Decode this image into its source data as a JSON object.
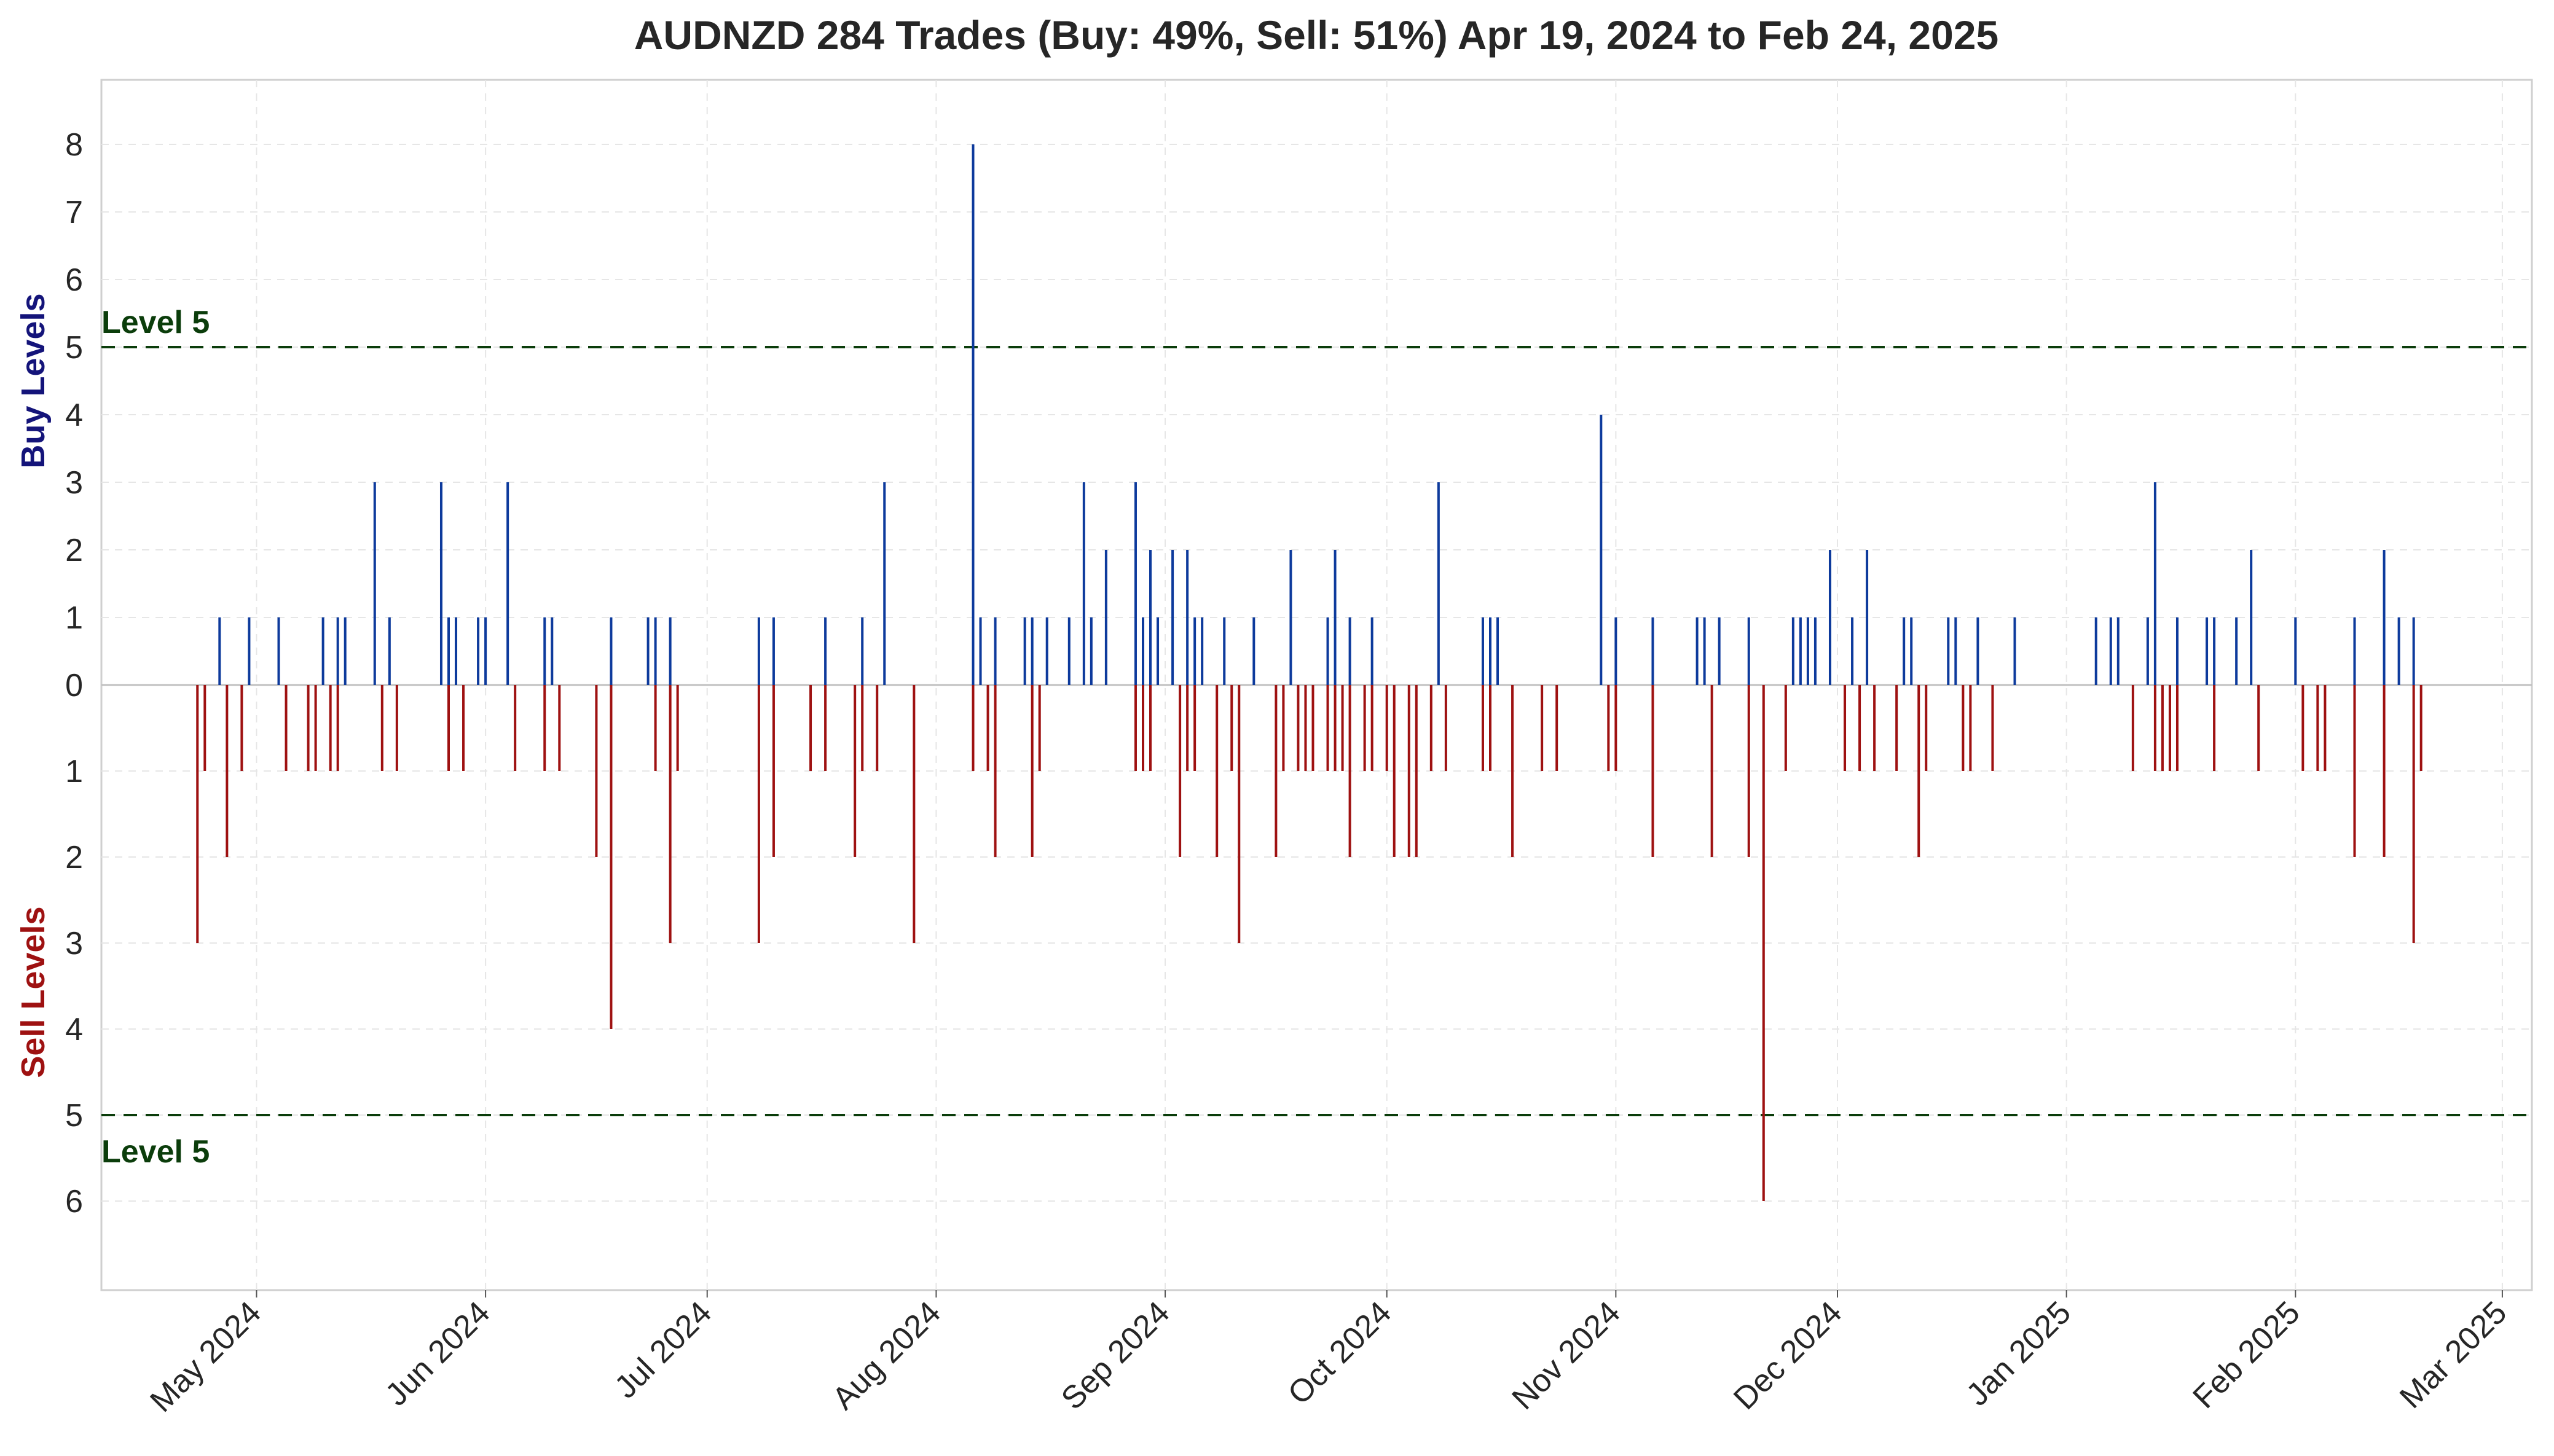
{
  "chart_data": {
    "type": "bar",
    "title": "AUDNZD 284 Trades (Buy: 49%, Sell: 51%) Apr 19, 2024 to Feb 24, 2025",
    "ylabel_buy": "Buy Levels",
    "ylabel_sell": "Sell Levels",
    "x_range": [
      "2024-04-10",
      "2025-03-05"
    ],
    "x_ticks": [
      {
        "date": "2024-05-01",
        "label": "May 2024"
      },
      {
        "date": "2024-06-01",
        "label": "Jun 2024"
      },
      {
        "date": "2024-07-01",
        "label": "Jul 2024"
      },
      {
        "date": "2024-08-01",
        "label": "Aug 2024"
      },
      {
        "date": "2024-09-01",
        "label": "Sep 2024"
      },
      {
        "date": "2024-10-01",
        "label": "Oct 2024"
      },
      {
        "date": "2024-11-01",
        "label": "Nov 2024"
      },
      {
        "date": "2024-12-01",
        "label": "Dec 2024"
      },
      {
        "date": "2025-01-01",
        "label": "Jan 2025"
      },
      {
        "date": "2025-02-01",
        "label": "Feb 2025"
      },
      {
        "date": "2025-03-01",
        "label": "Mar 2025"
      }
    ],
    "buy_ylim": [
      0,
      8
    ],
    "sell_ylim": [
      0,
      6
    ],
    "buy_ticks": [
      "0",
      "1",
      "2",
      "3",
      "4",
      "5",
      "6",
      "7",
      "8"
    ],
    "sell_ticks": [
      "1",
      "2",
      "3",
      "4",
      "5",
      "6"
    ],
    "reference_lines": [
      {
        "side": "buy",
        "value": 5,
        "label": "Level 5"
      },
      {
        "side": "sell",
        "value": 5,
        "label": "Level 5"
      }
    ],
    "grid": true,
    "colors": {
      "buy": "#0d3a9c",
      "sell": "#9e1111",
      "reference": "#0b3d0b",
      "grid": "#e6e6e6",
      "zero_line": "#c0c0c0"
    },
    "series": [
      {
        "name": "Buy",
        "points": [
          [
            "2024-04-26",
            1
          ],
          [
            "2024-04-30",
            1
          ],
          [
            "2024-05-04",
            1
          ],
          [
            "2024-05-10",
            1
          ],
          [
            "2024-05-12",
            1
          ],
          [
            "2024-05-13",
            1
          ],
          [
            "2024-05-17",
            3
          ],
          [
            "2024-05-19",
            1
          ],
          [
            "2024-05-26",
            3
          ],
          [
            "2024-05-27",
            1
          ],
          [
            "2024-05-28",
            1
          ],
          [
            "2024-05-31",
            1
          ],
          [
            "2024-06-01",
            1
          ],
          [
            "2024-06-04",
            3
          ],
          [
            "2024-06-09",
            1
          ],
          [
            "2024-06-10",
            1
          ],
          [
            "2024-06-18",
            1
          ],
          [
            "2024-06-23",
            1
          ],
          [
            "2024-06-24",
            1
          ],
          [
            "2024-06-26",
            1
          ],
          [
            "2024-07-08",
            1
          ],
          [
            "2024-07-10",
            1
          ],
          [
            "2024-07-17",
            1
          ],
          [
            "2024-07-22",
            1
          ],
          [
            "2024-07-25",
            3
          ],
          [
            "2024-08-06",
            8
          ],
          [
            "2024-08-07",
            1
          ],
          [
            "2024-08-09",
            1
          ],
          [
            "2024-08-13",
            1
          ],
          [
            "2024-08-14",
            1
          ],
          [
            "2024-08-16",
            1
          ],
          [
            "2024-08-19",
            1
          ],
          [
            "2024-08-21",
            3
          ],
          [
            "2024-08-22",
            1
          ],
          [
            "2024-08-24",
            2
          ],
          [
            "2024-08-28",
            3
          ],
          [
            "2024-08-29",
            1
          ],
          [
            "2024-08-30",
            2
          ],
          [
            "2024-08-31",
            1
          ],
          [
            "2024-09-02",
            2
          ],
          [
            "2024-09-04",
            2
          ],
          [
            "2024-09-05",
            1
          ],
          [
            "2024-09-06",
            1
          ],
          [
            "2024-09-09",
            1
          ],
          [
            "2024-09-13",
            1
          ],
          [
            "2024-09-18",
            2
          ],
          [
            "2024-09-23",
            1
          ],
          [
            "2024-09-24",
            2
          ],
          [
            "2024-09-26",
            1
          ],
          [
            "2024-09-29",
            1
          ],
          [
            "2024-10-08",
            3
          ],
          [
            "2024-10-14",
            1
          ],
          [
            "2024-10-15",
            1
          ],
          [
            "2024-10-16",
            1
          ],
          [
            "2024-10-30",
            4
          ],
          [
            "2024-11-01",
            1
          ],
          [
            "2024-11-06",
            1
          ],
          [
            "2024-11-12",
            1
          ],
          [
            "2024-11-13",
            1
          ],
          [
            "2024-11-15",
            1
          ],
          [
            "2024-11-19",
            1
          ],
          [
            "2024-11-25",
            1
          ],
          [
            "2024-11-26",
            1
          ],
          [
            "2024-11-27",
            1
          ],
          [
            "2024-11-28",
            1
          ],
          [
            "2024-11-30",
            2
          ],
          [
            "2024-12-03",
            1
          ],
          [
            "2024-12-05",
            2
          ],
          [
            "2024-12-10",
            1
          ],
          [
            "2024-12-11",
            1
          ],
          [
            "2024-12-16",
            1
          ],
          [
            "2024-12-17",
            1
          ],
          [
            "2024-12-20",
            1
          ],
          [
            "2024-12-25",
            1
          ],
          [
            "2025-01-05",
            1
          ],
          [
            "2025-01-07",
            1
          ],
          [
            "2025-01-08",
            1
          ],
          [
            "2025-01-12",
            1
          ],
          [
            "2025-01-13",
            3
          ],
          [
            "2025-01-16",
            1
          ],
          [
            "2025-01-20",
            1
          ],
          [
            "2025-01-21",
            1
          ],
          [
            "2025-01-24",
            1
          ],
          [
            "2025-01-26",
            2
          ],
          [
            "2025-02-01",
            1
          ],
          [
            "2025-02-09",
            1
          ],
          [
            "2025-02-13",
            2
          ],
          [
            "2025-02-15",
            1
          ],
          [
            "2025-02-17",
            1
          ]
        ]
      },
      {
        "name": "Sell",
        "points": [
          [
            "2024-04-23",
            3
          ],
          [
            "2024-04-24",
            1
          ],
          [
            "2024-04-27",
            2
          ],
          [
            "2024-04-29",
            1
          ],
          [
            "2024-05-05",
            1
          ],
          [
            "2024-05-08",
            1
          ],
          [
            "2024-05-09",
            1
          ],
          [
            "2024-05-11",
            1
          ],
          [
            "2024-05-12",
            1
          ],
          [
            "2024-05-18",
            1
          ],
          [
            "2024-05-20",
            1
          ],
          [
            "2024-05-27",
            1
          ],
          [
            "2024-05-29",
            1
          ],
          [
            "2024-06-05",
            1
          ],
          [
            "2024-06-09",
            1
          ],
          [
            "2024-06-11",
            1
          ],
          [
            "2024-06-16",
            2
          ],
          [
            "2024-06-18",
            4
          ],
          [
            "2024-06-24",
            1
          ],
          [
            "2024-06-26",
            3
          ],
          [
            "2024-06-27",
            1
          ],
          [
            "2024-07-08",
            3
          ],
          [
            "2024-07-10",
            2
          ],
          [
            "2024-07-15",
            1
          ],
          [
            "2024-07-17",
            1
          ],
          [
            "2024-07-21",
            2
          ],
          [
            "2024-07-22",
            1
          ],
          [
            "2024-07-24",
            1
          ],
          [
            "2024-07-29",
            3
          ],
          [
            "2024-08-06",
            1
          ],
          [
            "2024-08-08",
            1
          ],
          [
            "2024-08-09",
            2
          ],
          [
            "2024-08-14",
            2
          ],
          [
            "2024-08-15",
            1
          ],
          [
            "2024-08-28",
            1
          ],
          [
            "2024-08-29",
            1
          ],
          [
            "2024-08-30",
            1
          ],
          [
            "2024-09-03",
            2
          ],
          [
            "2024-09-04",
            1
          ],
          [
            "2024-09-05",
            1
          ],
          [
            "2024-09-08",
            2
          ],
          [
            "2024-09-10",
            1
          ],
          [
            "2024-09-11",
            3
          ],
          [
            "2024-09-16",
            2
          ],
          [
            "2024-09-17",
            1
          ],
          [
            "2024-09-19",
            1
          ],
          [
            "2024-09-20",
            1
          ],
          [
            "2024-09-21",
            1
          ],
          [
            "2024-09-23",
            1
          ],
          [
            "2024-09-24",
            1
          ],
          [
            "2024-09-25",
            1
          ],
          [
            "2024-09-26",
            2
          ],
          [
            "2024-09-28",
            1
          ],
          [
            "2024-09-29",
            1
          ],
          [
            "2024-10-01",
            1
          ],
          [
            "2024-10-02",
            2
          ],
          [
            "2024-10-04",
            2
          ],
          [
            "2024-10-05",
            2
          ],
          [
            "2024-10-07",
            1
          ],
          [
            "2024-10-09",
            1
          ],
          [
            "2024-10-14",
            1
          ],
          [
            "2024-10-15",
            1
          ],
          [
            "2024-10-18",
            2
          ],
          [
            "2024-10-22",
            1
          ],
          [
            "2024-10-24",
            1
          ],
          [
            "2024-10-31",
            1
          ],
          [
            "2024-11-01",
            1
          ],
          [
            "2024-11-06",
            2
          ],
          [
            "2024-11-14",
            2
          ],
          [
            "2024-11-19",
            2
          ],
          [
            "2024-11-21",
            6
          ],
          [
            "2024-11-24",
            1
          ],
          [
            "2024-12-02",
            1
          ],
          [
            "2024-12-04",
            1
          ],
          [
            "2024-12-06",
            1
          ],
          [
            "2024-12-09",
            1
          ],
          [
            "2024-12-12",
            2
          ],
          [
            "2024-12-13",
            1
          ],
          [
            "2024-12-18",
            1
          ],
          [
            "2024-12-19",
            1
          ],
          [
            "2024-12-22",
            1
          ],
          [
            "2025-01-10",
            1
          ],
          [
            "2025-01-13",
            1
          ],
          [
            "2025-01-14",
            1
          ],
          [
            "2025-01-15",
            1
          ],
          [
            "2025-01-16",
            1
          ],
          [
            "2025-01-21",
            1
          ],
          [
            "2025-01-27",
            1
          ],
          [
            "2025-02-02",
            1
          ],
          [
            "2025-02-04",
            1
          ],
          [
            "2025-02-05",
            1
          ],
          [
            "2025-02-09",
            2
          ],
          [
            "2025-02-13",
            2
          ],
          [
            "2025-02-17",
            3
          ],
          [
            "2025-02-18",
            1
          ]
        ]
      }
    ]
  }
}
